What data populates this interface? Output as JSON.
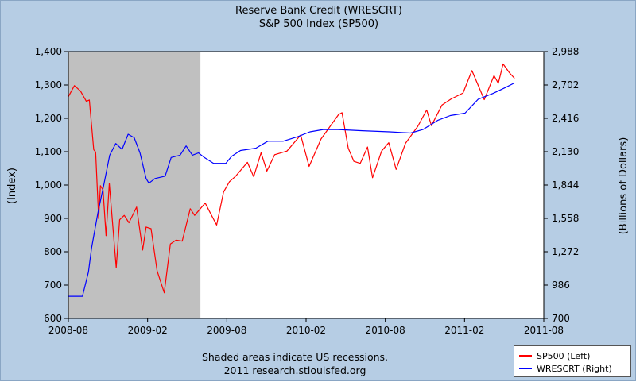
{
  "titles": {
    "line1": "Reserve Bank Credit (WRESCRT)",
    "line2": "S&P 500 Index (SP500)"
  },
  "footer": {
    "line1": "Shaded areas indicate US recessions.",
    "line2": "2011 research.stlouisfed.org"
  },
  "chart_data": {
    "type": "line",
    "ylabel_left": "(Index)",
    "ylabel_right": "(Billions of Dollars)",
    "xlim": [
      "2008-08",
      "2011-08"
    ],
    "x_ticks": [
      "2008-08",
      "2009-02",
      "2009-08",
      "2010-02",
      "2010-08",
      "2011-02",
      "2011-08"
    ],
    "ylim_left": [
      600,
      1400
    ],
    "ylim_right": [
      700,
      2988
    ],
    "yticks_left": [
      "600",
      "700",
      "800",
      "900",
      "1,000",
      "1,100",
      "1,200",
      "1,300",
      "1,400"
    ],
    "yticks_right": [
      "700",
      "986",
      "1,272",
      "1,558",
      "1,844",
      "2,130",
      "2,416",
      "2,702",
      "2,988"
    ],
    "recession": {
      "start": "2008-08",
      "end": "2009-06"
    },
    "background_color": "#ffffff",
    "series": [
      {
        "name": "SP500 (Left)",
        "axis": "left",
        "color": "#ff0000",
        "points": [
          [
            "2008-08-01",
            1265
          ],
          [
            "2008-08-15",
            1298
          ],
          [
            "2008-08-29",
            1282
          ],
          [
            "2008-09-12",
            1251
          ],
          [
            "2008-09-19",
            1255
          ],
          [
            "2008-09-29",
            1106
          ],
          [
            "2008-10-03",
            1099
          ],
          [
            "2008-10-10",
            899
          ],
          [
            "2008-10-14",
            998
          ],
          [
            "2008-10-20",
            985
          ],
          [
            "2008-10-27",
            848
          ],
          [
            "2008-11-04",
            1005
          ],
          [
            "2008-11-20",
            752
          ],
          [
            "2008-11-28",
            896
          ],
          [
            "2008-12-08",
            909
          ],
          [
            "2008-12-19",
            887
          ],
          [
            "2009-01-06",
            934
          ],
          [
            "2009-01-20",
            805
          ],
          [
            "2009-01-28",
            874
          ],
          [
            "2009-02-09",
            869
          ],
          [
            "2009-02-23",
            743
          ],
          [
            "2009-03-09",
            677
          ],
          [
            "2009-03-23",
            823
          ],
          [
            "2009-04-06",
            835
          ],
          [
            "2009-04-20",
            832
          ],
          [
            "2009-05-08",
            929
          ],
          [
            "2009-05-18",
            909
          ],
          [
            "2009-06-12",
            946
          ],
          [
            "2009-06-22",
            921
          ],
          [
            "2009-07-08",
            880
          ],
          [
            "2009-07-24",
            979
          ],
          [
            "2009-08-07",
            1010
          ],
          [
            "2009-08-21",
            1026
          ],
          [
            "2009-09-18",
            1068
          ],
          [
            "2009-10-02",
            1025
          ],
          [
            "2009-10-19",
            1097
          ],
          [
            "2009-11-02",
            1042
          ],
          [
            "2009-11-20",
            1091
          ],
          [
            "2009-12-18",
            1102
          ],
          [
            "2010-01-19",
            1150
          ],
          [
            "2010-02-08",
            1056
          ],
          [
            "2010-03-05",
            1138
          ],
          [
            "2010-04-15",
            1211
          ],
          [
            "2010-04-23",
            1217
          ],
          [
            "2010-05-07",
            1110
          ],
          [
            "2010-05-20",
            1071
          ],
          [
            "2010-06-04",
            1065
          ],
          [
            "2010-06-21",
            1114
          ],
          [
            "2010-07-02",
            1022
          ],
          [
            "2010-07-23",
            1102
          ],
          [
            "2010-08-09",
            1127
          ],
          [
            "2010-08-26",
            1047
          ],
          [
            "2010-09-17",
            1125
          ],
          [
            "2010-10-15",
            1176
          ],
          [
            "2010-11-05",
            1225
          ],
          [
            "2010-11-16",
            1178
          ],
          [
            "2010-12-10",
            1240
          ],
          [
            "2010-12-31",
            1258
          ],
          [
            "2011-01-28",
            1276
          ],
          [
            "2011-02-18",
            1343
          ],
          [
            "2011-03-16",
            1256
          ],
          [
            "2011-04-08",
            1328
          ],
          [
            "2011-04-18",
            1305
          ],
          [
            "2011-04-29",
            1363
          ],
          [
            "2011-05-13",
            1337
          ],
          [
            "2011-05-25",
            1320
          ]
        ]
      },
      {
        "name": "WRESCRT (Right)",
        "axis": "right",
        "color": "#0000ff",
        "points": [
          [
            "2008-08-01",
            890
          ],
          [
            "2008-09-03",
            890
          ],
          [
            "2008-09-17",
            1100
          ],
          [
            "2008-09-24",
            1300
          ],
          [
            "2008-10-08",
            1600
          ],
          [
            "2008-10-22",
            1850
          ],
          [
            "2008-11-05",
            2100
          ],
          [
            "2008-11-19",
            2200
          ],
          [
            "2008-12-03",
            2150
          ],
          [
            "2008-12-17",
            2280
          ],
          [
            "2008-12-31",
            2250
          ],
          [
            "2009-01-14",
            2120
          ],
          [
            "2009-01-28",
            1900
          ],
          [
            "2009-02-04",
            1860
          ],
          [
            "2009-02-18",
            1900
          ],
          [
            "2009-03-11",
            1920
          ],
          [
            "2009-03-25",
            2080
          ],
          [
            "2009-04-15",
            2100
          ],
          [
            "2009-04-29",
            2180
          ],
          [
            "2009-05-13",
            2100
          ],
          [
            "2009-05-27",
            2120
          ],
          [
            "2009-06-10",
            2080
          ],
          [
            "2009-07-01",
            2030
          ],
          [
            "2009-07-29",
            2030
          ],
          [
            "2009-08-12",
            2090
          ],
          [
            "2009-09-02",
            2140
          ],
          [
            "2009-10-07",
            2160
          ],
          [
            "2009-11-04",
            2220
          ],
          [
            "2009-12-09",
            2220
          ],
          [
            "2010-01-13",
            2260
          ],
          [
            "2010-02-10",
            2300
          ],
          [
            "2010-03-10",
            2320
          ],
          [
            "2010-04-14",
            2320
          ],
          [
            "2010-06-09",
            2310
          ],
          [
            "2010-08-11",
            2300
          ],
          [
            "2010-09-29",
            2290
          ],
          [
            "2010-10-27",
            2320
          ],
          [
            "2010-12-01",
            2400
          ],
          [
            "2010-12-29",
            2440
          ],
          [
            "2011-02-02",
            2460
          ],
          [
            "2011-03-02",
            2580
          ],
          [
            "2011-04-06",
            2630
          ],
          [
            "2011-05-04",
            2680
          ],
          [
            "2011-05-25",
            2720
          ]
        ]
      }
    ]
  }
}
